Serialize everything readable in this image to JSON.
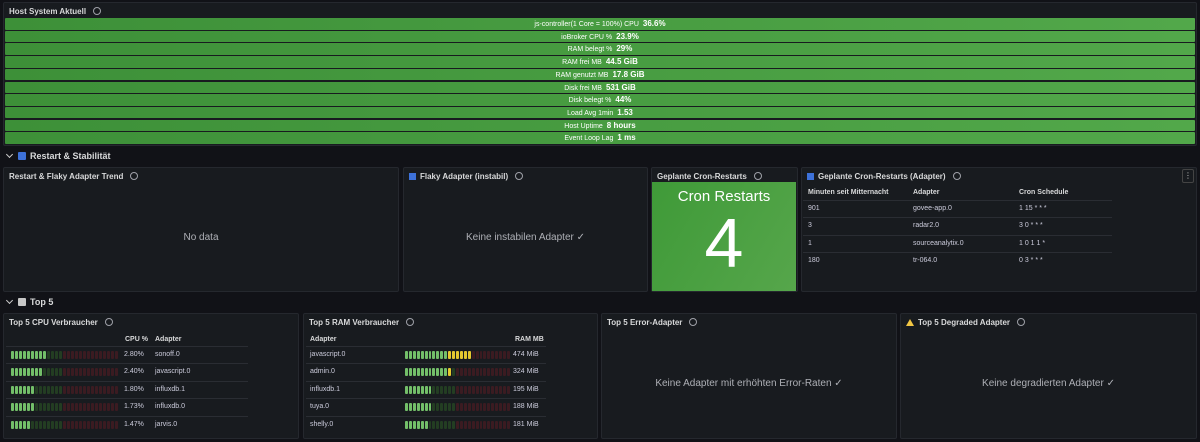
{
  "host_panel": {
    "title": "Host System Aktuell",
    "rows": [
      {
        "label": "js-controller(1 Core = 100%) CPU",
        "value": "36.6%"
      },
      {
        "label": "ioBroker CPU %",
        "value": "23.9%"
      },
      {
        "label": "RAM belegt %",
        "value": "29%"
      },
      {
        "label": "RAM frei MB",
        "value": "44.5 GiB"
      },
      {
        "label": "RAM genutzt MB",
        "value": "17.8 GiB"
      },
      {
        "label": "Disk frei MB",
        "value": "531 GiB"
      },
      {
        "label": "Disk belegt %",
        "value": "44%"
      },
      {
        "label": "Load Avg 1min",
        "value": "1.53"
      },
      {
        "label": "Host Uptime",
        "value": "8 hours"
      },
      {
        "label": "Event Loop Lag",
        "value": "1 ms"
      }
    ]
  },
  "restart_section": {
    "title": "Restart & Stabilität",
    "trend_panel": {
      "title": "Restart & Flaky Adapter Trend",
      "message": "No data"
    },
    "flaky_panel": {
      "title": "Flaky Adapter (instabil)",
      "message": "Keine instabilen Adapter ✓"
    },
    "cron_stat_panel": {
      "title": "Geplante Cron-Restarts",
      "stat_label": "Cron Restarts",
      "stat_value": 4
    },
    "cron_table_panel": {
      "title": "Geplante Cron-Restarts (Adapter)",
      "columns": [
        "Minuten seit Mitternacht",
        "Adapter",
        "Cron Schedule"
      ],
      "rows": [
        [
          901,
          "govee-app.0",
          "1 15 * * *"
        ],
        [
          3,
          "radar2.0",
          "3 0 * * *"
        ],
        [
          1,
          "sourceanalytix.0",
          "1 0 1 1 *"
        ],
        [
          180,
          "tr-064.0",
          "0 3 * * *"
        ]
      ]
    }
  },
  "top5_section": {
    "title": "Top 5",
    "cpu_panel": {
      "title": "Top 5 CPU Verbraucher",
      "columns": [
        "CPU %",
        "Adapter"
      ],
      "rows": [
        {
          "metric": {
            "value": 2.8,
            "label": "2.80%"
          },
          "adapter": "sonoff.0"
        },
        {
          "metric": {
            "value": 2.4,
            "label": "2.40%"
          },
          "adapter": "javascript.0"
        },
        {
          "metric": {
            "value": 1.8,
            "label": "1.80%"
          },
          "adapter": "influxdb.1"
        },
        {
          "metric": {
            "value": 1.73,
            "label": "1.73%"
          },
          "adapter": "influxdb.0"
        },
        {
          "metric": {
            "value": 1.47,
            "label": "1.47%"
          },
          "adapter": "jarvis.0"
        }
      ]
    },
    "ram_panel": {
      "title": "Top 5 RAM Verbraucher",
      "columns": [
        "Adapter",
        "RAM MB"
      ],
      "rows": [
        {
          "adapter": "javascript.0",
          "metric": {
            "value": 474,
            "label": "474 MiB"
          }
        },
        {
          "adapter": "admin.0",
          "metric": {
            "value": 324,
            "label": "324 MiB"
          }
        },
        {
          "adapter": "influxdb.1",
          "metric": {
            "value": 195,
            "label": "195 MiB"
          }
        },
        {
          "adapter": "tuya.0",
          "metric": {
            "value": 188,
            "label": "188 MiB"
          }
        },
        {
          "adapter": "shelly.0",
          "metric": {
            "value": 181,
            "label": "181 MiB"
          }
        }
      ]
    },
    "error_panel": {
      "title": "Top 5 Error-Adapter",
      "message": "Keine Adapter mit erhöhten Error-Raten ✓"
    },
    "degraded_panel": {
      "title": "Top 5 Degraded Adapter",
      "message": "Keine degradierten Adapter ✓"
    }
  }
}
